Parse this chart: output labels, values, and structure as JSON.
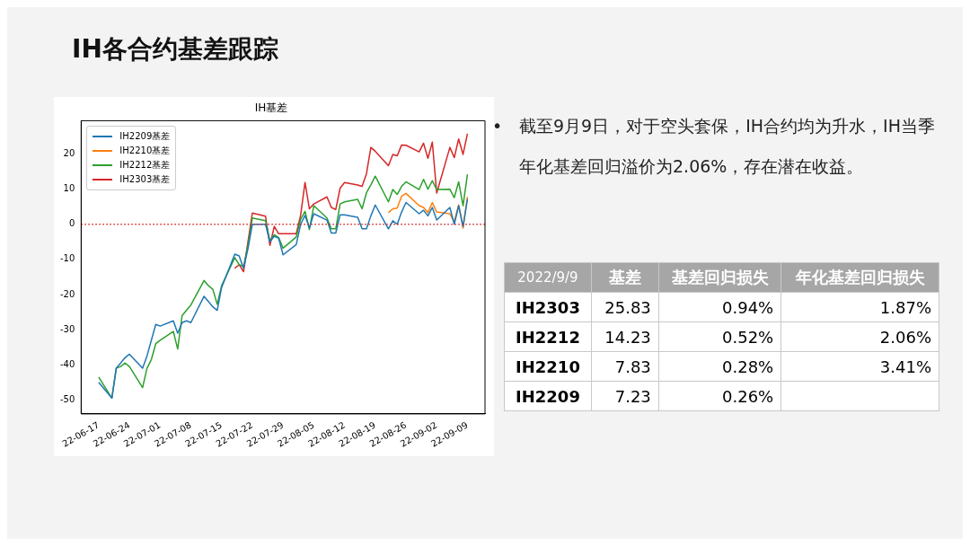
{
  "chart_data": [
    {
      "type": "line",
      "title": "IH基差",
      "marker": "none",
      "legend": "top left",
      "grid": false,
      "x": [
        "2022-06-17",
        "2022-06-20",
        "2022-06-21",
        "2022-06-22",
        "2022-06-23",
        "2022-06-24",
        "2022-06-27",
        "2022-06-28",
        "2022-06-29",
        "2022-06-30",
        "2022-07-01",
        "2022-07-04",
        "2022-07-05",
        "2022-07-06",
        "2022-07-07",
        "2022-07-08",
        "2022-07-11",
        "2022-07-12",
        "2022-07-13",
        "2022-07-14",
        "2022-07-15",
        "2022-07-18",
        "2022-07-19",
        "2022-07-20",
        "2022-07-21",
        "2022-07-22",
        "2022-07-25",
        "2022-07-26",
        "2022-07-27",
        "2022-07-28",
        "2022-07-29",
        "2022-08-01",
        "2022-08-02",
        "2022-08-03",
        "2022-08-04",
        "2022-08-05",
        "2022-08-08",
        "2022-08-09",
        "2022-08-10",
        "2022-08-11",
        "2022-08-12",
        "2022-08-15",
        "2022-08-16",
        "2022-08-17",
        "2022-08-18",
        "2022-08-19",
        "2022-08-22",
        "2022-08-23",
        "2022-08-24",
        "2022-08-25",
        "2022-08-26",
        "2022-08-29",
        "2022-08-30",
        "2022-08-31",
        "2022-09-01",
        "2022-09-02",
        "2022-09-05",
        "2022-09-06",
        "2022-09-07",
        "2022-09-08",
        "2022-09-09"
      ],
      "series": [
        {
          "name": "IH2209基差",
          "color": "#1f77b4",
          "values": [
            -45,
            -49.5,
            -41,
            -39.5,
            -38,
            -37,
            -41,
            -37.5,
            -33,
            -28.5,
            -29,
            -27.5,
            -31,
            -28,
            -27.5,
            -28,
            -20.5,
            -22,
            -23.5,
            -24.5,
            -18,
            -8.5,
            -9,
            -12.5,
            -7,
            0,
            0,
            -5,
            -3.4,
            -4,
            -8.7,
            -5.8,
            0,
            2.5,
            -1,
            3,
            1.2,
            -2.5,
            -2.5,
            2.7,
            2.7,
            2,
            -1.3,
            -1.3,
            2.4,
            5.5,
            -1.3,
            1,
            0,
            3.5,
            6.2,
            3,
            4,
            2.4,
            4.8,
            1.2,
            4.8,
            0,
            5.3,
            -0.6,
            7.2
          ]
        },
        {
          "name": "IH2210基差",
          "color": "#ff7f0e",
          "values": [
            null,
            null,
            null,
            null,
            null,
            null,
            null,
            null,
            null,
            null,
            null,
            null,
            null,
            null,
            null,
            null,
            null,
            null,
            null,
            null,
            null,
            null,
            null,
            null,
            null,
            null,
            null,
            null,
            null,
            null,
            null,
            null,
            null,
            null,
            null,
            null,
            null,
            null,
            null,
            null,
            null,
            null,
            null,
            null,
            null,
            null,
            3.3,
            4.4,
            4.6,
            8,
            8.8,
            5.3,
            4.8,
            3.3,
            6.2,
            3.5,
            3,
            0.7,
            5.5,
            -1.1,
            7.8
          ]
        },
        {
          "name": "IH2212基差",
          "color": "#2ca02c",
          "values": [
            -43.5,
            -49.5,
            -41,
            -40.5,
            -39.5,
            -40.5,
            -46.5,
            -41,
            -38.5,
            -34,
            -33,
            -30.5,
            -35.5,
            -26,
            -24.5,
            -23,
            -16,
            -17.5,
            -18.5,
            -22.8,
            -17.5,
            -9.5,
            -11.5,
            -12,
            -6,
            1.8,
            1,
            -4.7,
            -3,
            -3.8,
            -6.8,
            -3.6,
            1.4,
            3.7,
            -1.5,
            5.3,
            1.8,
            -1.3,
            -1.3,
            5.8,
            6.4,
            7.1,
            4.4,
            9,
            11.2,
            13.7,
            6.4,
            9.9,
            8.5,
            10.8,
            12.1,
            9.9,
            12.8,
            10,
            12.4,
            9.9,
            10,
            7.6,
            12.1,
            5.3,
            14.2
          ]
        },
        {
          "name": "IH2303基差",
          "color": "#d62728",
          "values": [
            null,
            null,
            null,
            null,
            null,
            null,
            null,
            null,
            null,
            null,
            null,
            null,
            null,
            null,
            null,
            null,
            null,
            null,
            null,
            null,
            null,
            -12.5,
            -11.5,
            -13.5,
            -5,
            3.2,
            2.3,
            -6,
            -0.6,
            -2.7,
            -2.7,
            -2.7,
            2.6,
            11.9,
            4.4,
            5.8,
            7.8,
            4.8,
            4.2,
            10.3,
            11.9,
            11.2,
            10.8,
            14.4,
            21.9,
            20.8,
            16.7,
            19.9,
            19.5,
            22.6,
            22.5,
            20.6,
            23.1,
            18.8,
            23.4,
            8.9,
            21.9,
            19,
            24.3,
            19.9,
            25.8
          ]
        }
      ],
      "xlim": [
        "2022-06-13",
        "2022-09-13"
      ],
      "xticks": [
        {
          "value": "2022-06-17",
          "label": "22-06-17"
        },
        {
          "value": "2022-06-24",
          "label": "22-06-24"
        },
        {
          "value": "2022-07-01",
          "label": "22-07-01"
        },
        {
          "value": "2022-07-08",
          "label": "22-07-08"
        },
        {
          "value": "2022-07-15",
          "label": "22-07-15"
        },
        {
          "value": "2022-07-22",
          "label": "22-07-22"
        },
        {
          "value": "2022-07-29",
          "label": "22-07-29"
        },
        {
          "value": "2022-08-05",
          "label": "22-08-05"
        },
        {
          "value": "2022-08-12",
          "label": "22-08-12"
        },
        {
          "value": "2022-08-19",
          "label": "22-08-19"
        },
        {
          "value": "2022-08-26",
          "label": "22-08-26"
        },
        {
          "value": "2022-09-02",
          "label": "22-09-02"
        },
        {
          "value": "2022-09-09",
          "label": "22-09-09"
        }
      ],
      "ylim": [
        -54,
        29.5
      ],
      "yticks": [
        -50,
        -40,
        -30,
        -20,
        -10,
        0,
        10,
        20
      ],
      "ref_lines": [
        {
          "axis": "y",
          "value": 0,
          "color": "#d62728",
          "line_style": "dotted"
        }
      ]
    },
    {
      "type": "other",
      "title": "IH各合约基差跟踪",
      "annotations": [
        "•",
        "截至9月9日，对于空头套保，IH合约均为升水，IH当季年化基差回归溢价为2.06%，存在潜在收益。"
      ]
    },
    {
      "type": "other",
      "legend_title": "2022/9/9",
      "categories": [
        "IH2303",
        "IH2212",
        "IH2210",
        "IH2209"
      ],
      "data_labels": true,
      "series": [
        {
          "name": "基差",
          "values": [
            25.83,
            14.23,
            7.83,
            7.23
          ]
        },
        {
          "name": "基差回归损失",
          "values": [
            0.94,
            0.52,
            0.28,
            0.26
          ],
          "value_labels": [
            "0.94%",
            "0.52%",
            "0.28%",
            "0.26%"
          ]
        },
        {
          "name": "年化基差回归损失",
          "values": [
            1.87,
            2.06,
            3.41,
            null
          ],
          "value_labels": [
            "1.87%",
            "2.06%",
            "3.41%",
            null
          ]
        }
      ]
    }
  ]
}
